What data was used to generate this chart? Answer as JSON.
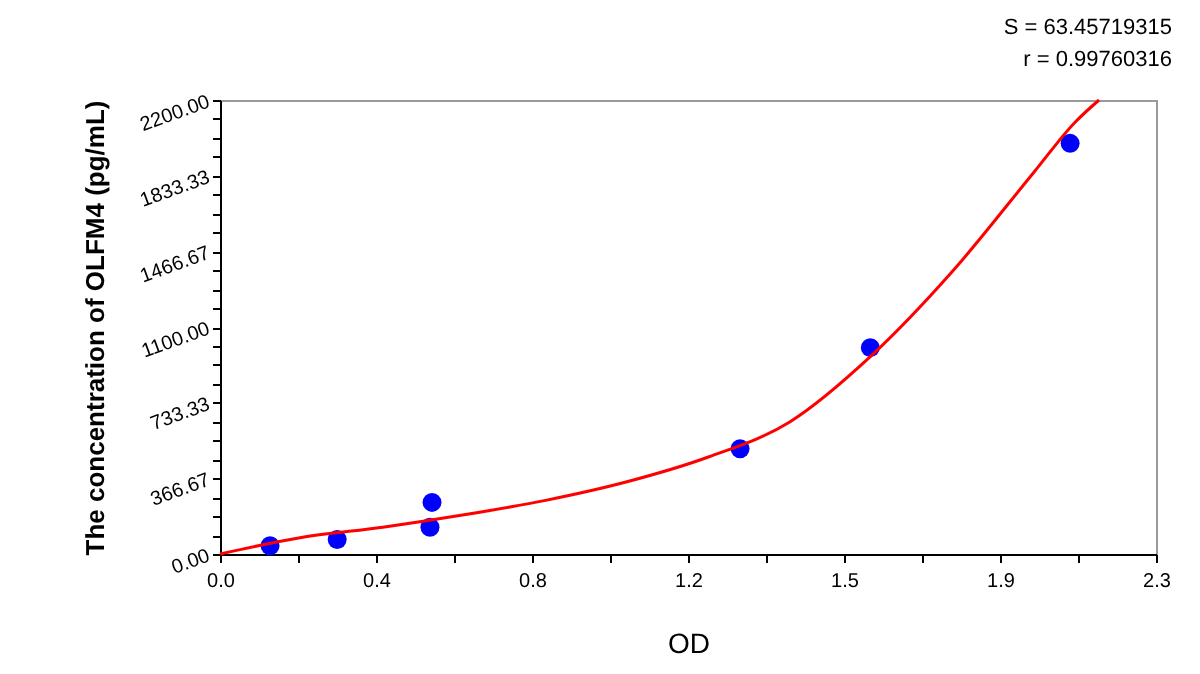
{
  "chart_data": {
    "type": "scatter",
    "xlabel": "OD",
    "ylabel": "The concentration of OLFM4 (pg/mL)",
    "annotations": [
      "S = 63.45719315",
      "r = 0.99760316"
    ],
    "x": [
      0.123,
      0.288,
      0.516,
      0.521,
      1.278,
      1.598,
      2.089
    ],
    "series": [
      {
        "color": "#0000ff",
        "marker": "circle",
        "values": [
          40,
          70,
          130,
          250,
          510,
          1000,
          1990
        ]
      },
      {
        "type": "line",
        "color": "#ff0000",
        "marker": "none",
        "x": [
          0,
          0.2,
          0.4,
          0.6,
          0.8,
          1.0,
          1.2,
          1.4,
          1.6,
          1.8,
          2.0,
          2.1,
          2.16
        ],
        "values": [
          0,
          80,
          130,
          190,
          260,
          350,
          470,
          640,
          960,
          1370,
          1850,
          2090,
          2200
        ]
      }
    ],
    "xlim": [
      0,
      2.3
    ],
    "xticks": [
      {
        "value": 0,
        "label": "0.0"
      },
      {
        "value": 0.1917,
        "label": null
      },
      {
        "value": 0.3833,
        "label": "0.4"
      },
      {
        "value": 0.575,
        "label": null
      },
      {
        "value": 0.7667,
        "label": "0.8"
      },
      {
        "value": 0.9583,
        "label": null
      },
      {
        "value": 1.15,
        "label": "1.2"
      },
      {
        "value": 1.3417,
        "label": null
      },
      {
        "value": 1.5333,
        "label": "1.5"
      },
      {
        "value": 1.725,
        "label": null
      },
      {
        "value": 1.9167,
        "label": "1.9"
      },
      {
        "value": 2.1083,
        "label": null
      },
      {
        "value": 2.3,
        "label": "2.3"
      }
    ],
    "ylim": [
      0,
      2200
    ],
    "yticks": [
      {
        "value": 0,
        "label": "0.00"
      },
      {
        "value": 91.67,
        "label": null
      },
      {
        "value": 183.33,
        "label": null
      },
      {
        "value": 275,
        "label": null
      },
      {
        "value": 366.67,
        "label": "366.67"
      },
      {
        "value": 458.33,
        "label": null
      },
      {
        "value": 550,
        "label": null
      },
      {
        "value": 641.67,
        "label": null
      },
      {
        "value": 733.33,
        "label": "733.33"
      },
      {
        "value": 825,
        "label": null
      },
      {
        "value": 916.67,
        "label": null
      },
      {
        "value": 1008.33,
        "label": null
      },
      {
        "value": 1100,
        "label": "1100.00"
      },
      {
        "value": 1191.67,
        "label": null
      },
      {
        "value": 1283.33,
        "label": null
      },
      {
        "value": 1375,
        "label": null
      },
      {
        "value": 1466.67,
        "label": "1466.67"
      },
      {
        "value": 1558.33,
        "label": null
      },
      {
        "value": 1650,
        "label": null
      },
      {
        "value": 1741.67,
        "label": null
      },
      {
        "value": 1833.33,
        "label": "1833.33"
      },
      {
        "value": 1925,
        "label": null
      },
      {
        "value": 2016.67,
        "label": null
      },
      {
        "value": 2108.33,
        "label": null
      },
      {
        "value": 2200,
        "label": "2200.00"
      }
    ],
    "grid": false
  }
}
